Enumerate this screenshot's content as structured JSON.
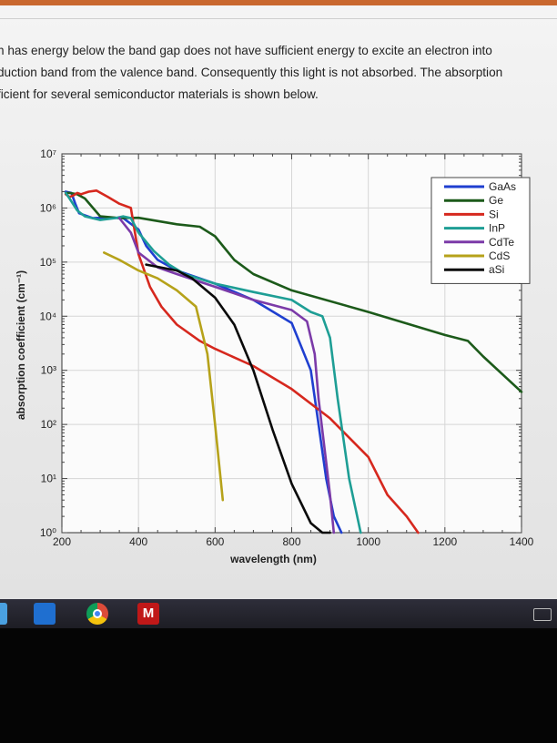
{
  "paragraph": {
    "lines": [
      "h has energy below the band gap does not have sufficient energy to excite an electron into",
      "duction band from the valence band. Consequently this light is not absorbed. The absorption",
      "ficient for several semiconductor materials is shown below."
    ]
  },
  "chart_data": {
    "type": "line",
    "title": "",
    "xlabel": "wavelength (nm)",
    "ylabel": "absorption coefficient (cm⁻¹)",
    "y_scale": "log10",
    "xlim": [
      200,
      1400
    ],
    "ylim_exponent": [
      0,
      7
    ],
    "x_ticks": [
      200,
      400,
      600,
      800,
      1000,
      1200,
      1400
    ],
    "y_tick_labels": [
      "10⁰",
      "10¹",
      "10²",
      "10³",
      "10⁴",
      "10⁵",
      "10⁶",
      "10⁷"
    ],
    "grid": true,
    "legend_position": "top-right",
    "series": [
      {
        "name": "GaAs",
        "color": "#1f3fd0",
        "x": [
          210,
          225,
          235,
          245,
          280,
          300,
          330,
          360,
          400,
          420,
          450,
          500,
          600,
          700,
          800,
          850,
          870,
          890,
          910,
          930
        ],
        "y": [
          2000000.0,
          1900000.0,
          1200000.0,
          800000.0,
          650000.0,
          660000.0,
          660000.0,
          650000.0,
          400000.0,
          200000.0,
          110000.0,
          70000.0,
          40000.0,
          20000.0,
          7500.0,
          1000.0,
          100.0,
          10,
          2,
          1
        ]
      },
      {
        "name": "Ge",
        "color": "#1c5a1a",
        "x": [
          210,
          220,
          240,
          260,
          300,
          350,
          400,
          500,
          560,
          600,
          620,
          650,
          700,
          800,
          1000,
          1200,
          1260,
          1300,
          1400
        ],
        "y": [
          1900000.0,
          1900000.0,
          1800000.0,
          1500000.0,
          700000.0,
          650000.0,
          660000.0,
          500000.0,
          450000.0,
          300000.0,
          200000.0,
          110000.0,
          60000.0,
          30000.0,
          12000.0,
          4500.0,
          3500.0,
          1800.0,
          400.0
        ]
      },
      {
        "name": "Si",
        "color": "#d6281e",
        "x": [
          210,
          220,
          230,
          240,
          250,
          270,
          290,
          320,
          350,
          380,
          400,
          430,
          460,
          500,
          560,
          600,
          700,
          800,
          900,
          1000,
          1050,
          1100,
          1130
        ],
        "y": [
          1800000.0,
          1600000.0,
          1700000.0,
          1900000.0,
          1800000.0,
          2000000.0,
          2100000.0,
          1600000.0,
          1200000.0,
          1000000.0,
          140000.0,
          35000.0,
          15000.0,
          7000.0,
          3500.0,
          2500.0,
          1200.0,
          450.0,
          130.0,
          25,
          5,
          2,
          1
        ]
      },
      {
        "name": "InP",
        "color": "#1e9e95",
        "x": [
          210,
          220,
          240,
          260,
          300,
          340,
          360,
          380,
          400,
          440,
          480,
          520,
          600,
          700,
          800,
          850,
          880,
          900,
          920,
          950,
          980
        ],
        "y": [
          1900000.0,
          1500000.0,
          900000.0,
          700000.0,
          600000.0,
          650000.0,
          700000.0,
          650000.0,
          350000.0,
          160000.0,
          90000.0,
          60000.0,
          40000.0,
          28000.0,
          20000.0,
          12000.0,
          10000.0,
          4000.0,
          300.0,
          10,
          1
        ]
      },
      {
        "name": "CdTe",
        "color": "#7b3aa8",
        "x": [
          350,
          380,
          400,
          450,
          500,
          600,
          700,
          800,
          840,
          860,
          870,
          890,
          900,
          910
        ],
        "y": [
          650000.0,
          350000.0,
          150000.0,
          80000.0,
          60000.0,
          35000.0,
          20000.0,
          13000.0,
          8000.0,
          2000.0,
          300.0,
          20,
          5,
          1
        ]
      },
      {
        "name": "CdS",
        "color": "#b6a21a",
        "x": [
          310,
          350,
          400,
          450,
          500,
          550,
          580,
          600,
          620
        ],
        "y": [
          150000.0,
          110000.0,
          70000.0,
          50000.0,
          30000.0,
          15000.0,
          2000.0,
          100.0,
          4
        ]
      },
      {
        "name": "aSi",
        "color": "#0a0a0a",
        "x": [
          420,
          500,
          540,
          600,
          650,
          700,
          750,
          800,
          850,
          880,
          900
        ],
        "y": [
          90000.0,
          70000.0,
          50000.0,
          22000.0,
          7000.0,
          1000.0,
          80,
          8,
          1.5,
          1,
          1
        ]
      }
    ]
  }
}
